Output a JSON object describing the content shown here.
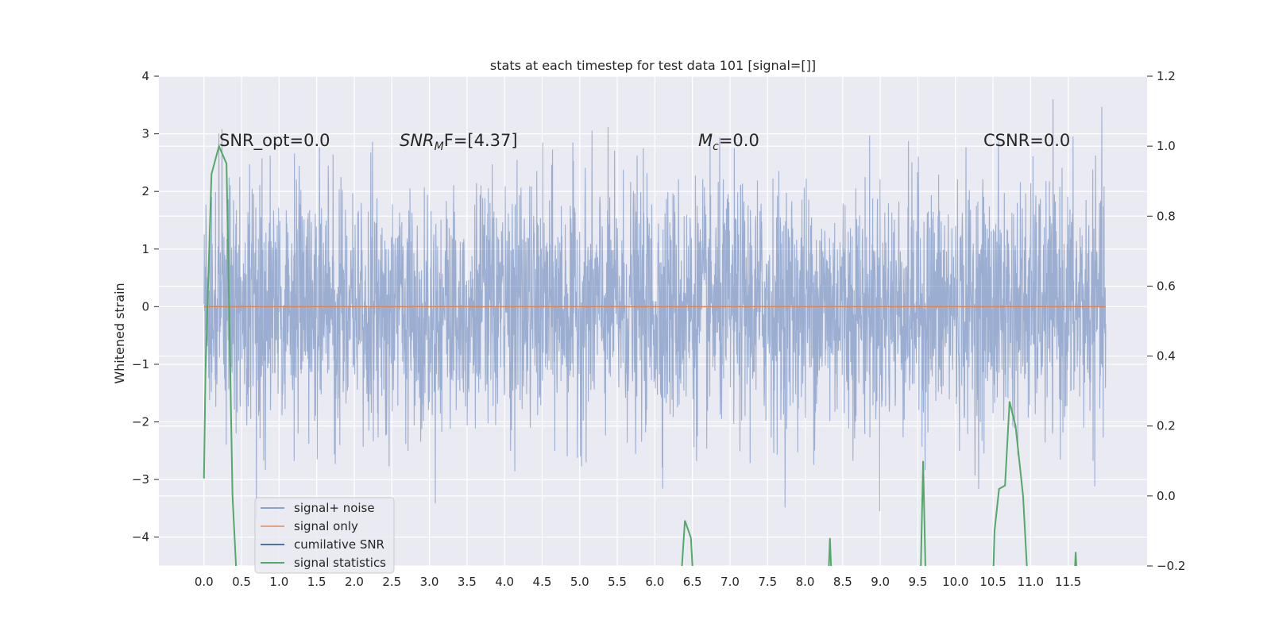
{
  "chart_data": {
    "type": "line",
    "title": "stats at each timestep for test data 101 [signal=[]]",
    "xlabel": "",
    "ylabel": "Whitened strain",
    "xlim": [
      -0.6,
      12.55
    ],
    "ylim": [
      -4.5,
      4
    ],
    "y2lim": [
      -0.2,
      1.2
    ],
    "x_ticks": [
      "0.0",
      "0.5",
      "1.0",
      "1.5",
      "2.0",
      "2.5",
      "3.0",
      "3.5",
      "4.0",
      "4.5",
      "5.0",
      "5.5",
      "6.0",
      "6.5",
      "7.0",
      "7.5",
      "8.0",
      "8.5",
      "9.0",
      "9.5",
      "10.0",
      "10.5",
      "11.0",
      "11.5"
    ],
    "y_ticks": [
      "4",
      "3",
      "2",
      "1",
      "0",
      "−1",
      "−2",
      "−3",
      "−4"
    ],
    "y2_ticks": [
      "1.2",
      "1.0",
      "0.8",
      "0.6",
      "0.4",
      "0.2",
      "0.0",
      "−0.2"
    ],
    "grid": true,
    "legend_position": "bottom-left",
    "legend": [
      "signal+ noise",
      "signal only",
      "cumilative SNR",
      "signal statistics"
    ],
    "annotations": {
      "snr_opt": "SNR_opt=0.0",
      "snr_mf_base": "SNR",
      "snr_mf_sub": "M",
      "snr_mf_rest": "F=[4.37]",
      "mc_base": "M",
      "mc_sub": "c",
      "mc_rest": "=0.0",
      "csnr": "CSNR=0.0"
    },
    "series": [
      {
        "name": "signal+ noise",
        "color": "#4c72b0",
        "opacity": 0.5,
        "axis": "left",
        "x_range": [
          0.0,
          12.0
        ],
        "envelope_approx": [
          -2.3,
          2.3
        ],
        "samples_approx": 8192,
        "note_values": "dense white noise, std approx 1, peaks approx +3.6 / -4.1"
      },
      {
        "name": "signal only",
        "color": "#dd8452",
        "axis": "left",
        "x": [
          0.0,
          12.0
        ],
        "y": [
          0.0,
          0.0
        ]
      },
      {
        "name": "cumilative SNR",
        "color": "#4c72b0",
        "axis": "right",
        "x": [],
        "y": []
      },
      {
        "name": "signal statistics",
        "color": "#55a868",
        "axis": "right",
        "x": [
          0.0,
          0.02,
          0.1,
          0.2,
          0.3,
          0.38,
          0.45,
          6.3,
          6.4,
          6.48,
          6.55,
          8.28,
          8.33,
          8.38,
          9.52,
          9.57,
          9.62,
          10.48,
          10.52,
          10.58,
          10.66,
          10.72,
          10.8,
          10.9,
          11.0,
          11.55,
          11.6,
          11.65
        ],
        "y": [
          0.05,
          0.35,
          0.92,
          1.0,
          0.95,
          0.0,
          -0.3,
          -0.4,
          -0.07,
          -0.12,
          -0.4,
          -0.4,
          -0.12,
          -0.4,
          -0.4,
          0.1,
          -0.4,
          -0.4,
          -0.1,
          0.02,
          0.03,
          0.27,
          0.2,
          0.0,
          -0.4,
          -0.4,
          -0.16,
          -0.4
        ]
      }
    ]
  }
}
